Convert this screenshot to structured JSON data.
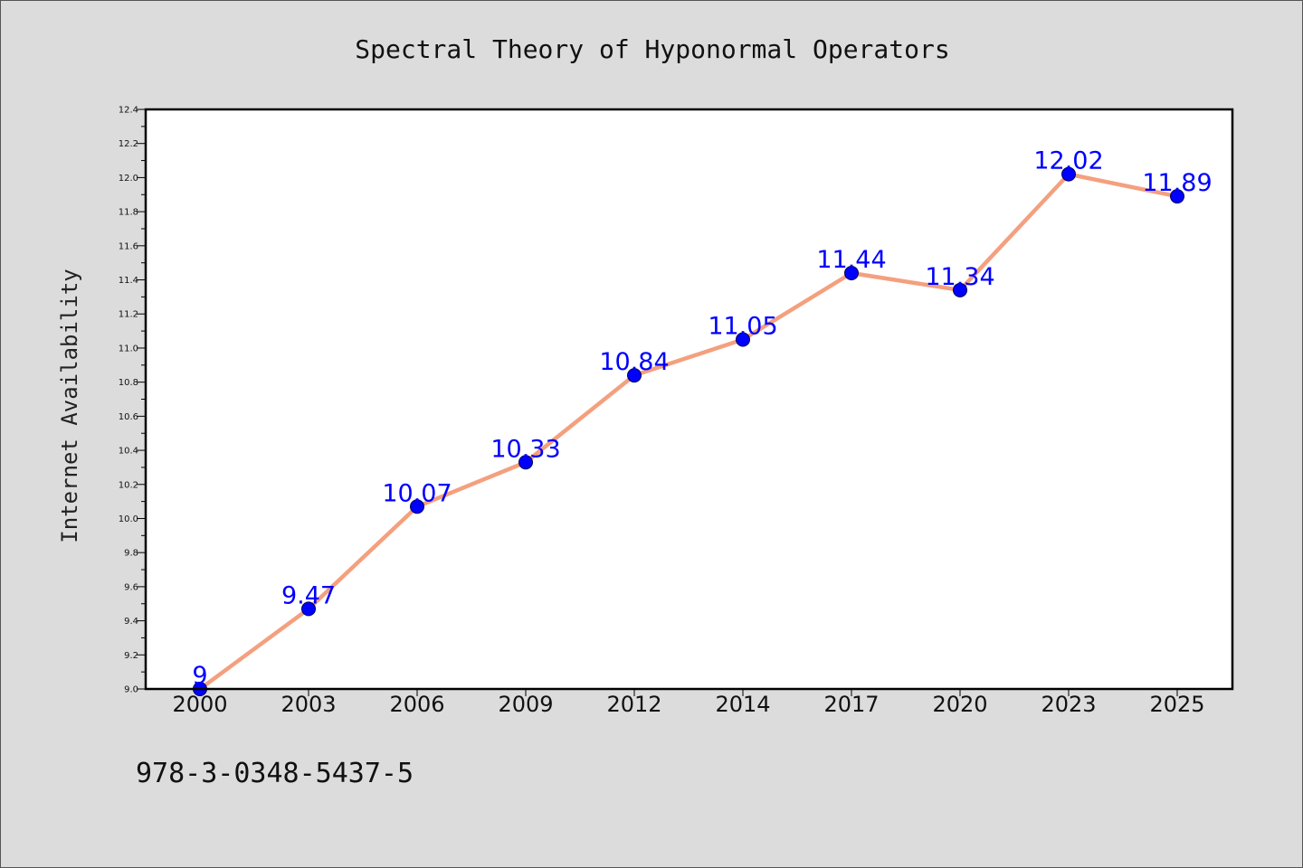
{
  "chart_data": {
    "type": "line",
    "title": "Spectral Theory of Hyponormal Operators",
    "xlabel": "",
    "ylabel": "Internet Availability",
    "categories": [
      "2000",
      "2003",
      "2006",
      "2009",
      "2012",
      "2014",
      "2017",
      "2020",
      "2023",
      "2025"
    ],
    "series": [
      {
        "values": [
          9,
          9.47,
          10.07,
          10.33,
          10.84,
          11.05,
          11.44,
          11.34,
          12.02,
          11.89
        ],
        "labels": [
          "9",
          "9.47",
          "10.07",
          "10.33",
          "10.84",
          "11.05",
          "11.44",
          "11.34",
          "12.02",
          "11.89"
        ],
        "line_color": "#f4a07e",
        "marker_color": "#0000ff"
      }
    ],
    "ylim": [
      9.0,
      12.4
    ],
    "yticks": [
      "9.0",
      "9.2",
      "9.4",
      "9.6",
      "9.8",
      "10.0",
      "10.2",
      "10.4",
      "10.6",
      "10.8",
      "11.0",
      "11.2",
      "11.4",
      "11.6",
      "11.8",
      "12.0",
      "12.2",
      "12.4"
    ],
    "grid": false,
    "legend": "none"
  },
  "footer": {
    "isbn": "978-3-0348-5437-5"
  },
  "colors": {
    "background": "#dcdcdc",
    "plot_background": "#ffffff",
    "label_color": "#0000ff"
  }
}
